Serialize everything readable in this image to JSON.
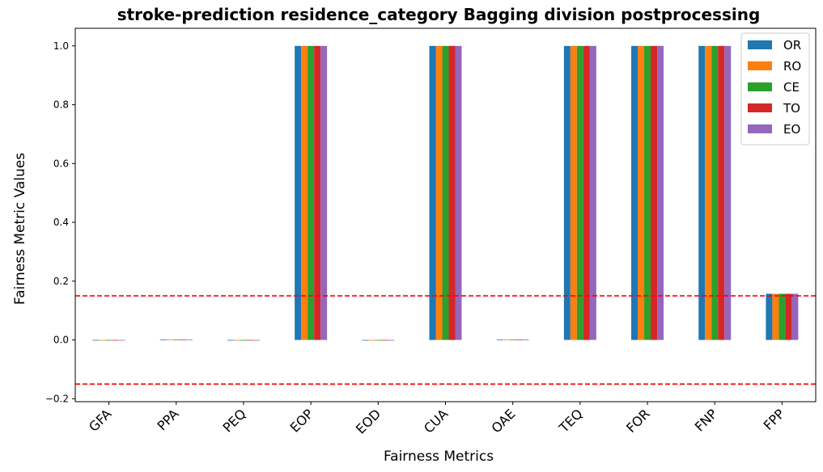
{
  "chart_data": {
    "type": "bar",
    "title": "stroke-prediction residence_category Bagging division postprocessing",
    "xlabel": "Fairness Metrics",
    "ylabel": "Fairness Metric Values",
    "categories": [
      "GFA",
      "PPA",
      "PEQ",
      "EOP",
      "EOD",
      "CUA",
      "OAE",
      "TEQ",
      "FOR",
      "FNP",
      "FPP"
    ],
    "series": [
      {
        "name": "OR",
        "color": "#1f77b4",
        "values": [
          0,
          0.001,
          0,
          1.0,
          0,
          1.0,
          0.001,
          1.0,
          1.0,
          1.0,
          0.157
        ]
      },
      {
        "name": "RO",
        "color": "#ff7f0e",
        "values": [
          0,
          0.001,
          0,
          1.0,
          0,
          1.0,
          0.001,
          1.0,
          1.0,
          1.0,
          0.157
        ]
      },
      {
        "name": "CE",
        "color": "#2ca02c",
        "values": [
          0,
          0.001,
          0,
          1.0,
          0,
          1.0,
          0.001,
          1.0,
          1.0,
          1.0,
          0.157
        ]
      },
      {
        "name": "TO",
        "color": "#d62728",
        "values": [
          0,
          0.001,
          0,
          1.0,
          0,
          1.0,
          0.001,
          1.0,
          1.0,
          1.0,
          0.157
        ]
      },
      {
        "name": "EO",
        "color": "#9467bd",
        "values": [
          0,
          0.001,
          0,
          1.0,
          0,
          1.0,
          0.001,
          1.0,
          1.0,
          1.0,
          0.157
        ]
      }
    ],
    "ylim": [
      -0.21,
      1.06
    ],
    "yticks": [
      -0.2,
      0.0,
      0.2,
      0.4,
      0.6,
      0.8,
      1.0
    ],
    "ytick_labels": [
      "−0.2",
      "0.0",
      "0.2",
      "0.4",
      "0.6",
      "0.8",
      "1.0"
    ],
    "threshold_lines": [
      {
        "value": 0.15,
        "color": "#ff0000",
        "style": "dashed"
      },
      {
        "value": -0.15,
        "color": "#ff0000",
        "style": "dashed"
      }
    ],
    "grid": false,
    "legend_position": "top-right"
  }
}
